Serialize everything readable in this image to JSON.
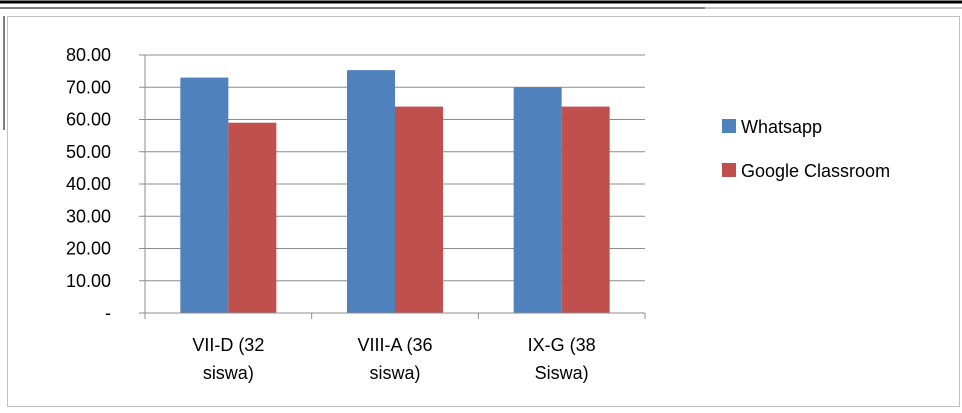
{
  "colors": {
    "whatsapp": "#4F81BD",
    "classroom": "#C0504D",
    "axis": "#808080"
  },
  "chart_data": {
    "type": "bar",
    "title": "",
    "xlabel": "",
    "ylabel": "",
    "ylim": [
      0,
      80
    ],
    "yticks": [
      "80.00",
      "70.00",
      "60.00",
      "50.00",
      "40.00",
      "30.00",
      "20.00",
      "10.00",
      "-"
    ],
    "categories": [
      [
        "VII-D (32",
        "siswa)"
      ],
      [
        "VIII-A (36",
        "siswa)"
      ],
      [
        "IX-G (38",
        "Siswa)"
      ]
    ],
    "series": [
      {
        "name": "Whatsapp",
        "color": "#4F81BD",
        "values": [
          73,
          75.3,
          70
        ]
      },
      {
        "name": "Google Classroom",
        "color": "#C0504D",
        "values": [
          59,
          64,
          64
        ]
      }
    ],
    "legend_position": "right",
    "grid": true
  }
}
